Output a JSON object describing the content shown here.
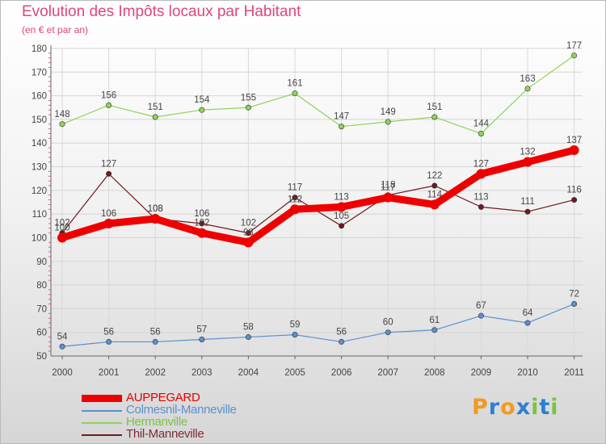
{
  "chart_data": {
    "type": "line",
    "title": "Evolution des Impôts locaux par Habitant",
    "subtitle": "(en € et par an)",
    "xlabel": "",
    "ylabel": "",
    "ylim": [
      50,
      180
    ],
    "yticks": [
      50,
      60,
      70,
      80,
      90,
      100,
      110,
      120,
      130,
      140,
      150,
      160,
      170,
      180
    ],
    "categories": [
      "2000",
      "2001",
      "2002",
      "2003",
      "2004",
      "2005",
      "2006",
      "2007",
      "2008",
      "2009",
      "2010",
      "2011"
    ],
    "grid": true,
    "legend_position": "bottom-left",
    "series": [
      {
        "name": "Colmesnil-Manneville",
        "color": "#5b8fcf",
        "values": [
          54,
          56,
          56,
          57,
          58,
          59,
          56,
          60,
          61,
          67,
          64,
          72
        ]
      },
      {
        "name": "Hermanville",
        "color": "#8fd35a",
        "values": [
          148,
          156,
          151,
          154,
          155,
          161,
          147,
          149,
          151,
          144,
          163,
          177
        ]
      },
      {
        "name": "Thil-Manneville",
        "color": "#6e1a22",
        "values": [
          102,
          127,
          108,
          106,
          102,
          117,
          105,
          118,
          122,
          113,
          111,
          116
        ]
      },
      {
        "name": "AUPPEGARD",
        "color": "#ee0000",
        "values": [
          100,
          106,
          108,
          102,
          98,
          112,
          113,
          117,
          114,
          127,
          132,
          137
        ]
      }
    ],
    "legend_order": [
      "AUPPEGARD",
      "Colmesnil-Manneville",
      "Hermanville",
      "Thil-Manneville"
    ]
  },
  "logo": {
    "letters": [
      "P",
      "r",
      "o",
      "x",
      "i",
      "t",
      "i"
    ],
    "colors": [
      "#f39a1f",
      "#2f7fcf",
      "#f39a1f",
      "#2f7fcf",
      "#7cc242",
      "#2f7fcf",
      "#7cc242"
    ]
  }
}
